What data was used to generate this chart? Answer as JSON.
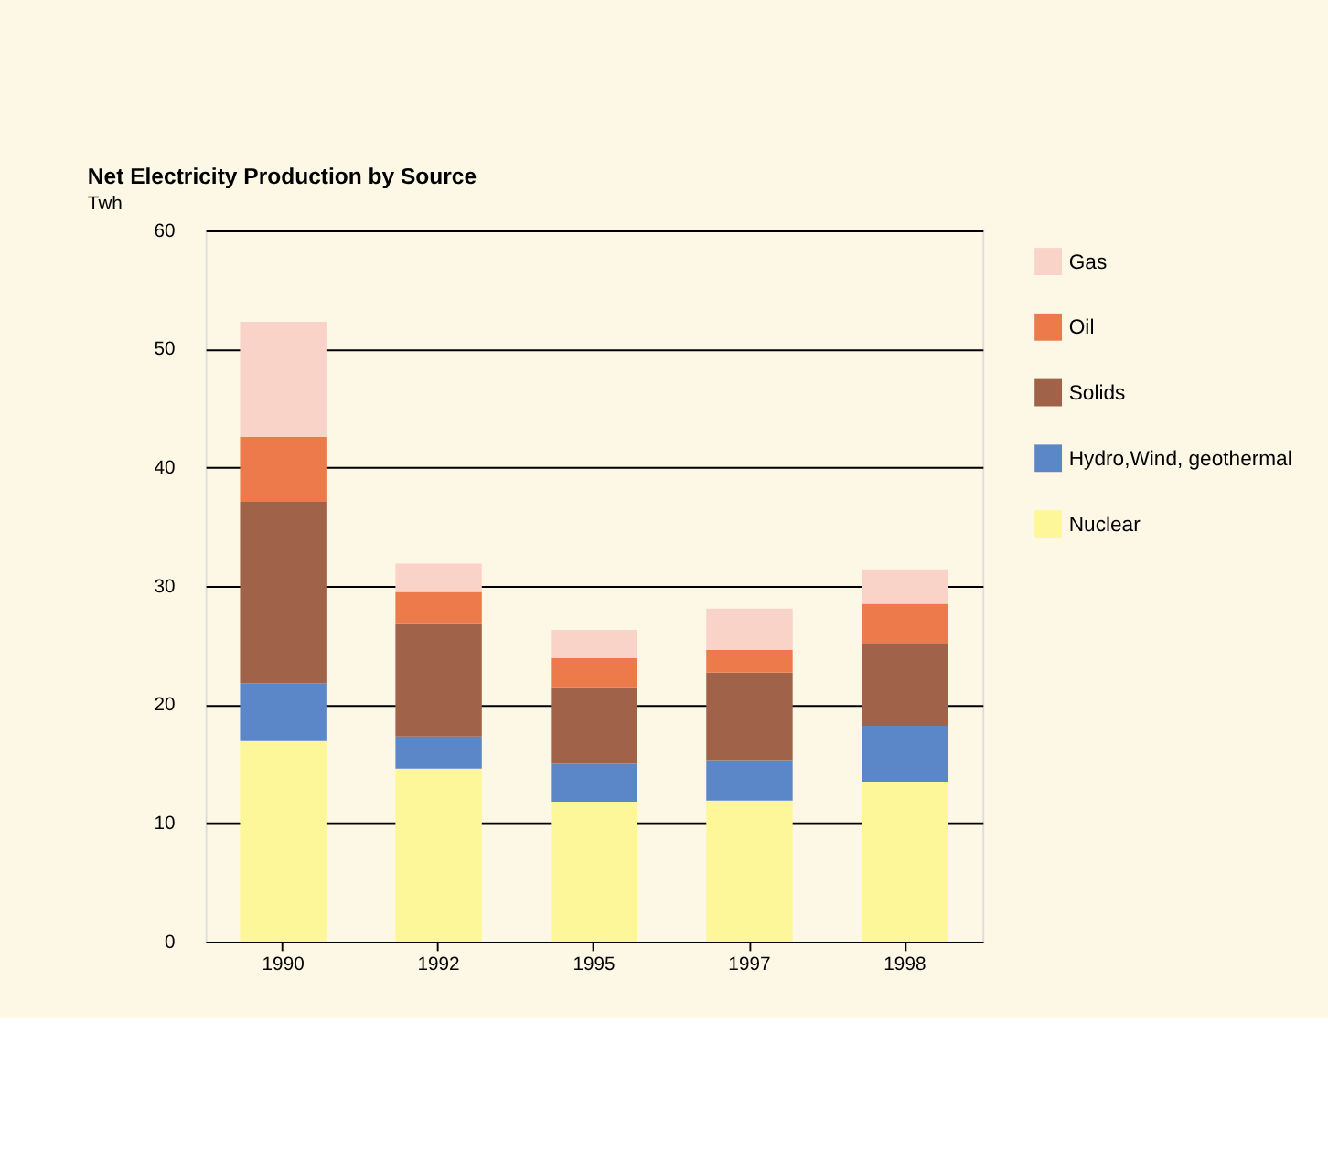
{
  "chart_data": {
    "type": "bar",
    "stacked": true,
    "title": "Net Electricity Production by Source",
    "ylabel": "Twh",
    "categories": [
      "1990",
      "1992",
      "1995",
      "1997",
      "1998"
    ],
    "series": [
      {
        "name": "Nuclear",
        "color": "#fef799",
        "values": [
          16.9,
          14.6,
          11.8,
          11.9,
          13.5
        ]
      },
      {
        "name": "Hydro,Wind, geothermal",
        "color": "#5b87c8",
        "values": [
          4.9,
          2.7,
          3.2,
          3.4,
          4.7
        ]
      },
      {
        "name": "Solids",
        "color": "#a0634a",
        "values": [
          15.3,
          9.5,
          6.4,
          7.4,
          7.0
        ]
      },
      {
        "name": "Oil",
        "color": "#ec7a4a",
        "values": [
          5.5,
          2.7,
          2.5,
          1.9,
          3.3
        ]
      },
      {
        "name": "Gas",
        "color": "#f9d3c8",
        "values": [
          9.7,
          2.4,
          2.4,
          3.5,
          2.9
        ]
      }
    ],
    "ylim": [
      0,
      60
    ],
    "yticks": [
      0,
      10,
      20,
      30,
      40,
      50,
      60
    ],
    "grid": "y",
    "legend": "right"
  }
}
